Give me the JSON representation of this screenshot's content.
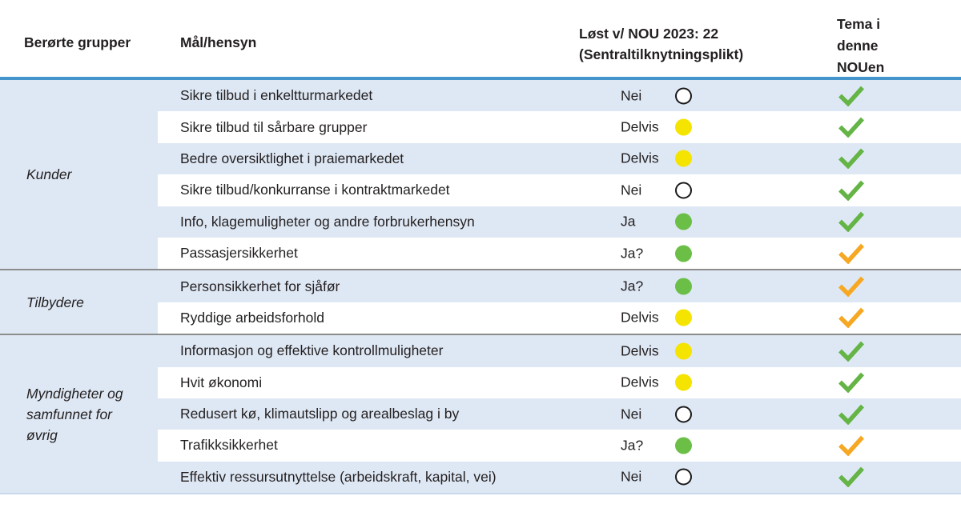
{
  "header": {
    "affected_groups": "Berørte grupper",
    "goals": "Mål/hensyn",
    "solved_line1": "Løst v/ NOU 2023: 22",
    "solved_line2": "(Sentraltilknytningsplikt)",
    "theme_lines": [
      "Tema i",
      "denne",
      "NOUen"
    ]
  },
  "groups": [
    {
      "label": "Kunder",
      "rows": [
        {
          "goal": "Sikre tilbud i enkeltturmarkedet",
          "status": "Nei",
          "status_dot": "white",
          "theme_check": "green"
        },
        {
          "goal": "Sikre tilbud til sårbare grupper",
          "status": "Delvis",
          "status_dot": "yellow",
          "theme_check": "green"
        },
        {
          "goal": "Bedre oversiktlighet i praiemarkedet",
          "status": "Delvis",
          "status_dot": "yellow",
          "theme_check": "green"
        },
        {
          "goal": "Sikre tilbud/konkurranse i kontraktmarkedet",
          "status": "Nei",
          "status_dot": "white",
          "theme_check": "green"
        },
        {
          "goal": "Info, klagemuligheter og andre forbrukerhensyn",
          "status": "Ja",
          "status_dot": "green",
          "theme_check": "green"
        },
        {
          "goal": "Passasjersikkerhet",
          "status": "Ja?",
          "status_dot": "green",
          "theme_check": "orange"
        }
      ]
    },
    {
      "label": "Tilbydere",
      "rows": [
        {
          "goal": "Personsikkerhet for sjåfør",
          "status": "Ja?",
          "status_dot": "green",
          "theme_check": "orange"
        },
        {
          "goal": "Ryddige arbeidsforhold",
          "status": "Delvis",
          "status_dot": "yellow",
          "theme_check": "orange"
        }
      ]
    },
    {
      "label": "Myndigheter og samfunnet for øvrig",
      "rows": [
        {
          "goal": "Informasjon og effektive kontrollmuligheter",
          "status": "Delvis",
          "status_dot": "yellow",
          "theme_check": "green"
        },
        {
          "goal": "Hvit økonomi",
          "status": "Delvis",
          "status_dot": "yellow",
          "theme_check": "green"
        },
        {
          "goal": "Redusert kø, klimautslipp og arealbeslag i by",
          "status": "Nei",
          "status_dot": "white",
          "theme_check": "green"
        },
        {
          "goal": "Trafikksikkerhet",
          "status": "Ja?",
          "status_dot": "green",
          "theme_check": "orange"
        },
        {
          "goal": "Effektiv ressursutnyttelse (arbeidskraft, kapital, vei)",
          "status": "Nei",
          "status_dot": "white",
          "theme_check": "green"
        }
      ]
    }
  ],
  "colors": {
    "row_blue": "#dee8f4",
    "header_rule_blue": "#4495cb",
    "group_separator_gray": "#8c8c8c",
    "circle_yellow": "#f5e400",
    "circle_green": "#6bbf47",
    "circle_white_fill": "#ffffff",
    "circle_white_border": "#1a1a1a",
    "check_green": "#64b446",
    "check_orange": "#f7a823",
    "text": "#231f20"
  }
}
